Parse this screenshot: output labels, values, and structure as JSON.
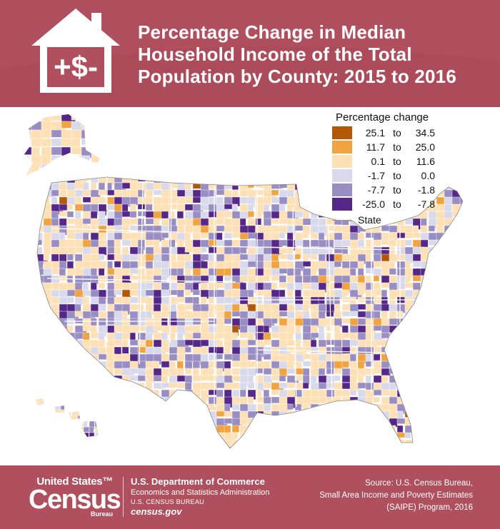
{
  "header": {
    "title_lines": [
      "Percentage Change in Median",
      "Household Income of the Total",
      "Population by County: 2015 to 2016"
    ],
    "icon": "house-dollar-icon",
    "icon_text": "+$-",
    "background_color": "#b0505e"
  },
  "legend": {
    "title": "Percentage change",
    "items": [
      {
        "low": "25.1",
        "to": "to",
        "high": "34.5",
        "color": "#b35806"
      },
      {
        "low": "11.7",
        "to": "to",
        "high": "25.0",
        "color": "#f1a340"
      },
      {
        "low": "0.1",
        "to": "to",
        "high": "11.6",
        "color": "#fee0b6"
      },
      {
        "low": "-1.7",
        "to": "to",
        "high": "0.0",
        "color": "#d8daeb"
      },
      {
        "low": "-7.7",
        "to": "to",
        "high": "-1.8",
        "color": "#998ec3"
      },
      {
        "low": "-25.0",
        "to": "to",
        "high": "-7.8",
        "color": "#542788"
      }
    ],
    "state_label": "State",
    "state_line_color": "#999999"
  },
  "map": {
    "type": "choropleth",
    "subject": "United States counties",
    "regions": [
      "Contiguous United States",
      "Alaska",
      "Hawaii"
    ]
  },
  "footer": {
    "logo_us": "United States™",
    "logo_census": "Census",
    "logo_bureau": "Bureau",
    "dept_name": "U.S. Department of Commerce",
    "dept_sub": "Economics and Statistics Administration",
    "dept_bureau": "U.S. CENSUS BUREAU",
    "website": "census.gov",
    "source_lines": [
      "Source: U.S. Census Bureau,",
      "Small Area Income and Poverty Estimates",
      "(SAIPE) Program, 2016"
    ]
  }
}
